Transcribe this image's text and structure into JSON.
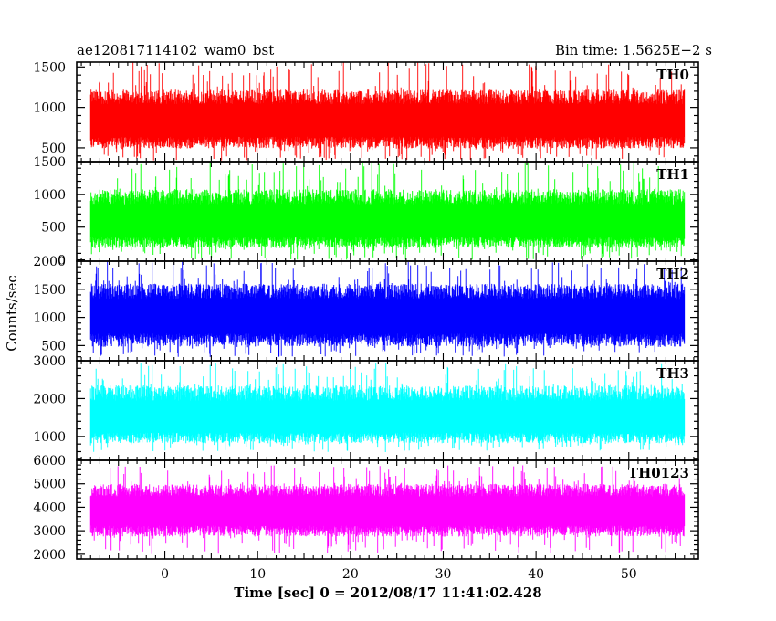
{
  "header": {
    "title": "ae120817114102_wam0_bst",
    "bin_time": "Bin time: 1.5625E−2 s"
  },
  "chart_data": {
    "type": "line",
    "title": "ae120817114102_wam0_bst",
    "xlabel": "Time [sec] 0 = 2012/08/17 11:41:02.428",
    "ylabel": "Counts/sec",
    "xlim": [
      -9.5,
      57.5
    ],
    "data_x_range": [
      -8,
      56
    ],
    "x_ticks": [
      0,
      10,
      20,
      30,
      40,
      50
    ],
    "x_tick_labels": [
      "0",
      "10",
      "20",
      "30",
      "40",
      "50"
    ],
    "grid": false,
    "panels": [
      {
        "series": "TH0",
        "color": "#ff0000",
        "ylim": [
          330,
          1560
        ],
        "y_ticks": [
          500,
          1000,
          1500
        ],
        "y_tick_labels": [
          "500",
          "1000",
          "1500"
        ],
        "envelope": {
          "center": 820,
          "p_low": 490,
          "p_high": 1220,
          "min": 340,
          "max": 1560
        }
      },
      {
        "series": "TH1",
        "color": "#00ff00",
        "ylim": [
          -20,
          1500
        ],
        "y_ticks": [
          0,
          500,
          1000,
          1500
        ],
        "y_tick_labels": [
          "0",
          "500",
          "1000",
          "1500"
        ],
        "envelope": {
          "center": 560,
          "p_low": 180,
          "p_high": 1080,
          "min": 0,
          "max": 1500
        }
      },
      {
        "series": "TH2",
        "color": "#0000ff",
        "ylim": [
          230,
          2000
        ],
        "y_ticks": [
          500,
          1000,
          1500,
          2000
        ],
        "y_tick_labels": [
          "500",
          "1000",
          "1500",
          "2000"
        ],
        "envelope": {
          "center": 1000,
          "p_low": 480,
          "p_high": 1600,
          "min": 280,
          "max": 2000
        }
      },
      {
        "series": "TH3",
        "color": "#00ffff",
        "ylim": [
          370,
          3000
        ],
        "y_ticks": [
          1000,
          2000,
          3000
        ],
        "y_tick_labels": [
          "1000",
          "2000",
          "3000"
        ],
        "envelope": {
          "center": 1450,
          "p_low": 820,
          "p_high": 2350,
          "min": 580,
          "max": 2950
        }
      },
      {
        "series": "TH0123",
        "color": "#ff00ff",
        "ylim": [
          1800,
          6000
        ],
        "y_ticks": [
          2000,
          3000,
          4000,
          5000,
          6000
        ],
        "y_tick_labels": [
          "2000",
          "3000",
          "4000",
          "5000",
          "6000"
        ],
        "envelope": {
          "center": 3800,
          "p_low": 2750,
          "p_high": 5000,
          "min": 2000,
          "max": 5800
        }
      }
    ]
  }
}
